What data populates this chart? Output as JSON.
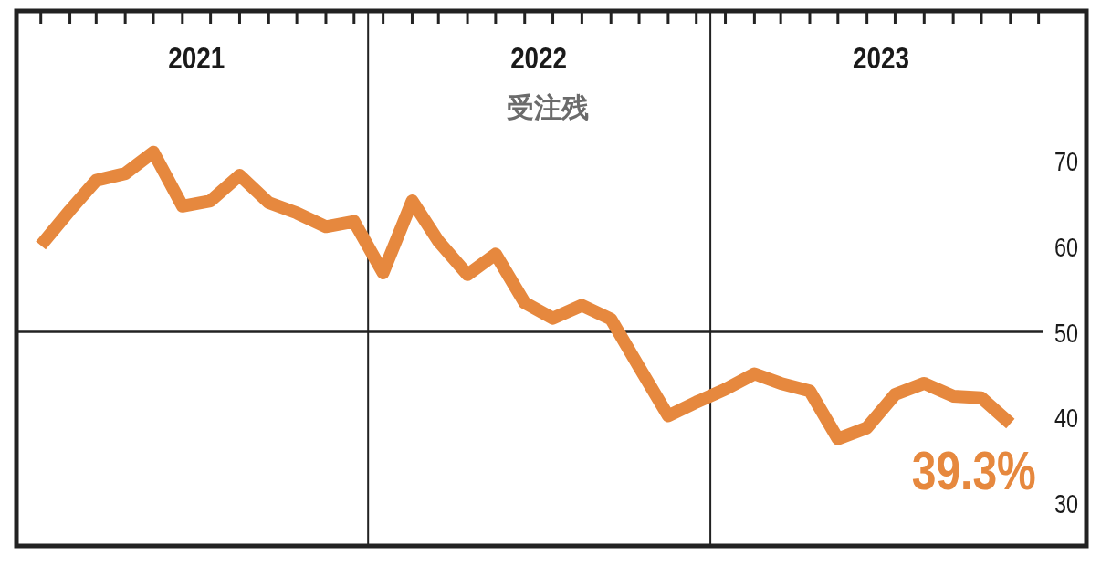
{
  "chart_data": {
    "type": "line",
    "title": "受注残",
    "x": [
      "2021-01",
      "2021-02",
      "2021-03",
      "2021-04",
      "2021-05",
      "2021-06",
      "2021-07",
      "2021-08",
      "2021-09",
      "2021-10",
      "2021-11",
      "2021-12",
      "2022-01",
      "2022-02",
      "2022-03",
      "2022-04",
      "2022-05",
      "2022-06",
      "2022-07",
      "2022-08",
      "2022-09",
      "2022-10",
      "2022-11",
      "2022-12",
      "2023-01",
      "2023-02",
      "2023-03",
      "2023-04",
      "2023-05",
      "2023-06",
      "2023-07",
      "2023-08",
      "2023-09",
      "2023-10",
      "2023-11"
    ],
    "series": [
      {
        "color": "#e6883e",
        "values": [
          60.1,
          64.2,
          67.7,
          68.5,
          71.0,
          64.7,
          65.3,
          68.3,
          65.1,
          63.9,
          62.3,
          62.9,
          56.9,
          65.3,
          60.6,
          56.7,
          59.1,
          53.4,
          51.6,
          53.1,
          51.5,
          45.9,
          40.2,
          41.8,
          43.3,
          45.1,
          44.0,
          43.1,
          37.5,
          38.8,
          42.7,
          44.0,
          42.5,
          42.3,
          39.3
        ]
      }
    ],
    "xlim": [
      "2020-12-06",
      "2024-01-21"
    ],
    "xticks": [
      {
        "value": "2021-01",
        "label": null
      },
      {
        "value": "2021-02",
        "label": null
      },
      {
        "value": "2021-03",
        "label": null
      },
      {
        "value": "2021-04",
        "label": null
      },
      {
        "value": "2021-05",
        "label": null
      },
      {
        "value": "2021-06",
        "label": null
      },
      {
        "value": "2021-07",
        "label": null
      },
      {
        "value": "2021-08",
        "label": null
      },
      {
        "value": "2021-09",
        "label": null
      },
      {
        "value": "2021-10",
        "label": null
      },
      {
        "value": "2021-11",
        "label": null
      },
      {
        "value": "2021-12",
        "label": null
      },
      {
        "value": "2022-01",
        "label": null
      },
      {
        "value": "2022-02",
        "label": null
      },
      {
        "value": "2022-03",
        "label": null
      },
      {
        "value": "2022-04",
        "label": null
      },
      {
        "value": "2022-05",
        "label": null
      },
      {
        "value": "2022-06",
        "label": null
      },
      {
        "value": "2022-07",
        "label": null
      },
      {
        "value": "2022-08",
        "label": null
      },
      {
        "value": "2022-09",
        "label": null
      },
      {
        "value": "2022-10",
        "label": null
      },
      {
        "value": "2022-11",
        "label": null
      },
      {
        "value": "2022-12",
        "label": null
      },
      {
        "value": "2023-01",
        "label": null
      },
      {
        "value": "2023-02",
        "label": null
      },
      {
        "value": "2023-03",
        "label": null
      },
      {
        "value": "2023-04",
        "label": null
      },
      {
        "value": "2023-05",
        "label": null
      },
      {
        "value": "2023-06",
        "label": null
      },
      {
        "value": "2023-07",
        "label": null
      },
      {
        "value": "2023-08",
        "label": null
      },
      {
        "value": "2023-09",
        "label": null
      },
      {
        "value": "2023-10",
        "label": null
      },
      {
        "value": "2023-11",
        "label": null
      },
      {
        "value": "2023-12",
        "label": null
      },
      {
        "value": "2021-06-16",
        "label": "2021"
      },
      {
        "value": "2022-06-16",
        "label": "2022"
      },
      {
        "value": "2023-06-16",
        "label": "2023"
      }
    ],
    "ylim": [
      25,
      87.5
    ],
    "yticks": [
      30,
      40,
      50,
      60,
      70
    ],
    "ref_lines": [
      {
        "axis": "y",
        "value": 50
      },
      {
        "axis": "x",
        "value": "2021-12-16"
      },
      {
        "axis": "x",
        "value": "2022-12-16"
      }
    ],
    "annotations": [
      {
        "text": "39.3%",
        "x": "2023-11",
        "y": 39.3
      }
    ],
    "line_style": "solid",
    "marker": "none",
    "grid": false
  }
}
